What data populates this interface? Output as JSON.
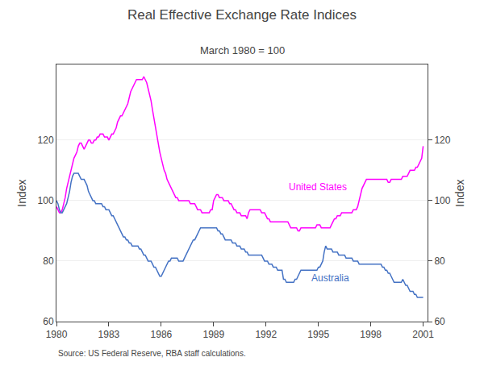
{
  "chart_data": {
    "type": "line",
    "title": "Real Effective Exchange Rate Indices",
    "subtitle": "March 1980 = 100",
    "ylabel": "Index",
    "y2label": "Index",
    "source": "Source: US Federal Reserve, RBA staff calculations.",
    "xlim": [
      1980.0,
      2001.25
    ],
    "xticks": [
      1980,
      1983,
      1986,
      1989,
      1992,
      1995,
      1998,
      2001
    ],
    "ylim": [
      60,
      145
    ],
    "yticks": [
      60,
      80,
      100,
      120
    ],
    "y2lim": [
      60,
      145
    ],
    "y2ticks": [
      60,
      80,
      100,
      120
    ],
    "grid": true,
    "x": [
      1980.0,
      1980.083,
      1980.167,
      1980.25,
      1980.333,
      1980.417,
      1980.5,
      1980.583,
      1980.667,
      1980.75,
      1980.833,
      1980.917,
      1981.0,
      1981.083,
      1981.167,
      1981.25,
      1981.333,
      1981.417,
      1981.5,
      1981.583,
      1981.667,
      1981.75,
      1981.833,
      1981.917,
      1982.0,
      1982.083,
      1982.167,
      1982.25,
      1982.333,
      1982.417,
      1982.5,
      1982.583,
      1982.667,
      1982.75,
      1982.833,
      1982.917,
      1983.0,
      1983.083,
      1983.167,
      1983.25,
      1983.333,
      1983.417,
      1983.5,
      1983.583,
      1983.667,
      1983.75,
      1983.833,
      1983.917,
      1984.0,
      1984.083,
      1984.167,
      1984.25,
      1984.333,
      1984.417,
      1984.5,
      1984.583,
      1984.667,
      1984.75,
      1984.833,
      1984.917,
      1985.0,
      1985.083,
      1985.167,
      1985.25,
      1985.333,
      1985.417,
      1985.5,
      1985.583,
      1985.667,
      1985.75,
      1985.833,
      1985.917,
      1986.0,
      1986.083,
      1986.167,
      1986.25,
      1986.333,
      1986.417,
      1986.5,
      1986.583,
      1986.667,
      1986.75,
      1986.833,
      1986.917,
      1987.0,
      1987.083,
      1987.167,
      1987.25,
      1987.333,
      1987.417,
      1987.5,
      1987.583,
      1987.667,
      1987.75,
      1987.833,
      1987.917,
      1988.0,
      1988.083,
      1988.167,
      1988.25,
      1988.333,
      1988.417,
      1988.5,
      1988.583,
      1988.667,
      1988.75,
      1988.833,
      1988.917,
      1989.0,
      1989.083,
      1989.167,
      1989.25,
      1989.333,
      1989.417,
      1989.5,
      1989.583,
      1989.667,
      1989.75,
      1989.833,
      1989.917,
      1990.0,
      1990.083,
      1990.167,
      1990.25,
      1990.333,
      1990.417,
      1990.5,
      1990.583,
      1990.667,
      1990.75,
      1990.833,
      1990.917,
      1991.0,
      1991.083,
      1991.167,
      1991.25,
      1991.333,
      1991.417,
      1991.5,
      1991.583,
      1991.667,
      1991.75,
      1991.833,
      1991.917,
      1992.0,
      1992.083,
      1992.167,
      1992.25,
      1992.333,
      1992.417,
      1992.5,
      1992.583,
      1992.667,
      1992.75,
      1992.833,
      1992.917,
      1993.0,
      1993.083,
      1993.167,
      1993.25,
      1993.333,
      1993.417,
      1993.5,
      1993.583,
      1993.667,
      1993.75,
      1993.833,
      1993.917,
      1994.0,
      1994.083,
      1994.167,
      1994.25,
      1994.333,
      1994.417,
      1994.5,
      1994.583,
      1994.667,
      1994.75,
      1994.833,
      1994.917,
      1995.0,
      1995.083,
      1995.167,
      1995.25,
      1995.333,
      1995.417,
      1995.5,
      1995.583,
      1995.667,
      1995.75,
      1995.833,
      1995.917,
      1996.0,
      1996.083,
      1996.167,
      1996.25,
      1996.333,
      1996.417,
      1996.5,
      1996.583,
      1996.667,
      1996.75,
      1996.833,
      1996.917,
      1997.0,
      1997.083,
      1997.167,
      1997.25,
      1997.333,
      1997.417,
      1997.5,
      1997.583,
      1997.667,
      1997.75,
      1997.833,
      1997.917,
      1998.0,
      1998.083,
      1998.167,
      1998.25,
      1998.333,
      1998.417,
      1998.5,
      1998.583,
      1998.667,
      1998.75,
      1998.833,
      1998.917,
      1999.0,
      1999.083,
      1999.167,
      1999.25,
      1999.333,
      1999.417,
      1999.5,
      1999.583,
      1999.667,
      1999.75,
      1999.833,
      1999.917,
      2000.0,
      2000.083,
      2000.167,
      2000.25,
      2000.333,
      2000.417,
      2000.5,
      2000.583,
      2000.667,
      2000.75,
      2000.833,
      2000.917,
      2001.0
    ],
    "series": [
      {
        "name": "United States",
        "color": "#FF00FF",
        "values": [
          98,
          97,
          96,
          96,
          97,
          99,
          101,
          104,
          106,
          108,
          110,
          112,
          114,
          115,
          116,
          118,
          119,
          119,
          118,
          117,
          118,
          119,
          120,
          120,
          119,
          119,
          120,
          120,
          121,
          121,
          122,
          122,
          122,
          121,
          121,
          121,
          120,
          121,
          122,
          122,
          123,
          124,
          126,
          127,
          128,
          128,
          129,
          130,
          131,
          132,
          134,
          136,
          137,
          138,
          139,
          140,
          140,
          140,
          140,
          140,
          141,
          140,
          139,
          137,
          135,
          133,
          130,
          127,
          124,
          121,
          118,
          116,
          114,
          112,
          110,
          109,
          107,
          106,
          105,
          104,
          103,
          102,
          101,
          101,
          100,
          100,
          100,
          100,
          100,
          100,
          100,
          100,
          99,
          99,
          99,
          99,
          98,
          97,
          97,
          97,
          96,
          96,
          96,
          96,
          96,
          96,
          97,
          97,
          100,
          101,
          102,
          102,
          101,
          101,
          101,
          100,
          100,
          100,
          100,
          99,
          99,
          98,
          97,
          97,
          96,
          96,
          96,
          95,
          95,
          95,
          95,
          94,
          96,
          97,
          97,
          97,
          97,
          97,
          97,
          97,
          97,
          96,
          96,
          96,
          95,
          94,
          94,
          93,
          93,
          93,
          93,
          93,
          93,
          93,
          93,
          93,
          93,
          93,
          93,
          93,
          92,
          91,
          91,
          91,
          91,
          91,
          90,
          90,
          91,
          91,
          91,
          91,
          91,
          91,
          91,
          91,
          91,
          91,
          91,
          92,
          92,
          92,
          91,
          91,
          91,
          91,
          91,
          91,
          91,
          92,
          93,
          94,
          94,
          95,
          95,
          95,
          96,
          96,
          96,
          96,
          96,
          96,
          96,
          96,
          97,
          97,
          97,
          98,
          100,
          102,
          104,
          105,
          106,
          107,
          107,
          107,
          107,
          107,
          107,
          107,
          107,
          107,
          107,
          107,
          107,
          107,
          107,
          107,
          106,
          106,
          107,
          107,
          107,
          107,
          107,
          107,
          107,
          107,
          108,
          108,
          108,
          108,
          109,
          110,
          110,
          110,
          110,
          111,
          111,
          112,
          113,
          114,
          118
        ]
      },
      {
        "name": "Australia",
        "color": "#4472C4",
        "values": [
          100,
          99,
          97,
          96,
          96,
          97,
          98,
          99,
          101,
          103,
          106,
          108,
          109,
          109,
          109,
          109,
          108,
          107,
          107,
          107,
          106,
          105,
          103,
          102,
          101,
          100,
          100,
          99,
          99,
          99,
          99,
          99,
          98,
          98,
          97,
          97,
          97,
          96,
          95,
          95,
          94,
          93,
          92,
          91,
          90,
          89,
          88,
          88,
          87,
          87,
          86,
          86,
          85,
          85,
          85,
          85,
          85,
          84,
          84,
          83,
          82,
          82,
          81,
          80,
          80,
          80,
          79,
          78,
          78,
          77,
          76,
          75,
          75,
          76,
          77,
          78,
          79,
          80,
          80,
          81,
          81,
          81,
          81,
          81,
          80,
          80,
          80,
          80,
          81,
          82,
          83,
          84,
          85,
          86,
          87,
          87,
          88,
          89,
          90,
          91,
          91,
          91,
          91,
          91,
          91,
          91,
          91,
          91,
          91,
          91,
          91,
          90,
          90,
          89,
          89,
          88,
          87,
          87,
          87,
          87,
          87,
          86,
          86,
          86,
          85,
          85,
          85,
          84,
          84,
          84,
          83,
          83,
          82,
          82,
          82,
          82,
          82,
          82,
          82,
          82,
          82,
          82,
          81,
          80,
          80,
          80,
          79,
          79,
          79,
          78,
          78,
          78,
          77,
          77,
          77,
          77,
          74,
          74,
          73,
          73,
          73,
          73,
          73,
          73,
          74,
          74,
          75,
          76,
          77,
          77,
          77,
          77,
          77,
          77,
          77,
          77,
          77,
          77,
          77,
          77,
          78,
          78,
          79,
          80,
          83,
          85,
          84,
          84,
          84,
          84,
          83,
          83,
          83,
          83,
          82,
          82,
          82,
          82,
          82,
          81,
          81,
          81,
          81,
          81,
          80,
          80,
          80,
          80,
          79,
          79,
          79,
          79,
          79,
          79,
          79,
          79,
          79,
          79,
          79,
          79,
          79,
          79,
          79,
          79,
          78,
          78,
          77,
          77,
          76,
          76,
          75,
          74,
          73,
          73,
          73,
          73,
          73,
          73,
          74,
          73,
          72,
          72,
          71,
          70,
          70,
          70,
          69,
          69,
          68,
          68,
          68,
          68,
          68
        ]
      }
    ],
    "annotations": [
      {
        "text": "United States",
        "x": 1993.2,
        "y": 102,
        "color": "#FF00FF"
      },
      {
        "text": "Australia",
        "x": 1994.5,
        "y": 72,
        "color": "#4472C4"
      }
    ]
  }
}
